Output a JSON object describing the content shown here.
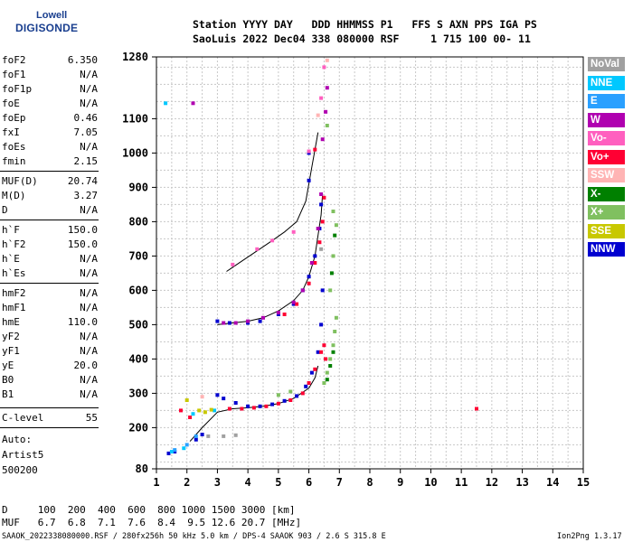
{
  "logo": {
    "line1": "Lowell",
    "line2": "DIGISONDE"
  },
  "header": {
    "line1": "Station YYYY DAY   DDD HHMMSS P1   FFS S AXN PPS IGA PS",
    "line2": "SaoLuis 2022 Dec04 338 080000 RSF     1 715 100 00- 11"
  },
  "params": [
    {
      "name": "foF2",
      "value": "6.350"
    },
    {
      "name": "foF1",
      "value": "N/A"
    },
    {
      "name": "foF1p",
      "value": "N/A"
    },
    {
      "name": "foE",
      "value": "N/A"
    },
    {
      "name": "foEp",
      "value": "0.46"
    },
    {
      "name": "fxI",
      "value": "7.05"
    },
    {
      "name": "foEs",
      "value": "N/A"
    },
    {
      "name": "fmin",
      "value": "2.15"
    },
    {
      "name": "MUF(D)",
      "value": "20.74"
    },
    {
      "name": "M(D)",
      "value": "3.27"
    },
    {
      "name": "D",
      "value": "N/A"
    },
    {
      "name": "h`F",
      "value": "150.0"
    },
    {
      "name": "h`F2",
      "value": "150.0"
    },
    {
      "name": "h`E",
      "value": "N/A"
    },
    {
      "name": "h`Es",
      "value": "N/A"
    },
    {
      "name": "hmF2",
      "value": "N/A"
    },
    {
      "name": "hmF1",
      "value": "N/A"
    },
    {
      "name": "hmE",
      "value": "110.0"
    },
    {
      "name": "yF2",
      "value": "N/A"
    },
    {
      "name": "yF1",
      "value": "N/A"
    },
    {
      "name": "yE",
      "value": "20.0"
    },
    {
      "name": "B0",
      "value": "N/A"
    },
    {
      "name": "B1",
      "value": "N/A"
    },
    {
      "name": "C-level",
      "value": "55"
    }
  ],
  "auto": {
    "label": "Auto:",
    "artist": "Artist5",
    "code": "500200"
  },
  "legend": [
    {
      "label": "NoVal",
      "color": "#a0a0a0"
    },
    {
      "label": "NNE",
      "color": "#00c8ff"
    },
    {
      "label": "E",
      "color": "#2aa0ff"
    },
    {
      "label": "W",
      "color": "#b000b0"
    },
    {
      "label": "Vo-",
      "color": "#ff5fbf"
    },
    {
      "label": "Vo+",
      "color": "#ff0033"
    },
    {
      "label": "SSW",
      "color": "#ffb4b4"
    },
    {
      "label": "X-",
      "color": "#008000"
    },
    {
      "label": "X+",
      "color": "#80c060"
    },
    {
      "label": "SSE",
      "color": "#c8c800"
    },
    {
      "label": "NNW",
      "color": "#0000d0"
    }
  ],
  "footer": {
    "d_row": "D     100  200  400  600  800 1000 1500 3000 [km]",
    "muf_row": "MUF   6.7  6.8  7.1  7.6  8.4  9.5 12.6 20.7 [MHz]",
    "file_row": "SAAOK_2022338080000.RSF / 280fx256h 50 kHz 5.0 km / DPS-4 SAAOK 903 / 2.6 S 315.8 E",
    "version": "Ion2Png 1.3.17"
  },
  "chart_data": {
    "type": "scatter",
    "xlim": [
      1,
      15
    ],
    "ylim": [
      80,
      1280
    ],
    "x_ticks": [
      1,
      2,
      3,
      4,
      5,
      6,
      7,
      8,
      9,
      10,
      11,
      12,
      13,
      14,
      15
    ],
    "y_ticks": [
      80,
      200,
      300,
      400,
      500,
      600,
      700,
      800,
      900,
      1000,
      1100,
      1280
    ],
    "grid": true,
    "legend_position": "right",
    "series": [
      {
        "name": "NNW",
        "color": "#0000d0",
        "points": [
          [
            3.0,
            295
          ],
          [
            3.2,
            285
          ],
          [
            3.6,
            272
          ],
          [
            4.0,
            262
          ],
          [
            4.4,
            262
          ],
          [
            4.8,
            268
          ],
          [
            5.2,
            278
          ],
          [
            5.6,
            292
          ],
          [
            5.9,
            320
          ],
          [
            6.1,
            360
          ],
          [
            6.3,
            420
          ],
          [
            6.4,
            500
          ],
          [
            6.45,
            600
          ],
          [
            5.0,
            530
          ],
          [
            5.5,
            560
          ],
          [
            5.8,
            600
          ],
          [
            6.0,
            640
          ],
          [
            6.2,
            700
          ],
          [
            6.35,
            780
          ],
          [
            6.4,
            850
          ],
          [
            6.0,
            920
          ],
          [
            6.0,
            1000
          ],
          [
            1.4,
            125
          ],
          [
            1.6,
            130
          ],
          [
            2.3,
            165
          ],
          [
            2.5,
            180
          ],
          [
            3.0,
            510
          ],
          [
            3.4,
            505
          ],
          [
            4.0,
            505
          ],
          [
            4.4,
            510
          ]
        ]
      },
      {
        "name": "Vo+",
        "color": "#ff0033",
        "points": [
          [
            3.4,
            255
          ],
          [
            3.8,
            255
          ],
          [
            4.2,
            258
          ],
          [
            4.6,
            262
          ],
          [
            5.0,
            270
          ],
          [
            5.4,
            280
          ],
          [
            5.8,
            300
          ],
          [
            6.0,
            330
          ],
          [
            6.2,
            370
          ],
          [
            6.4,
            420
          ],
          [
            6.5,
            440
          ],
          [
            6.55,
            400
          ],
          [
            5.2,
            530
          ],
          [
            5.6,
            560
          ],
          [
            6.0,
            620
          ],
          [
            6.2,
            680
          ],
          [
            6.35,
            740
          ],
          [
            6.45,
            800
          ],
          [
            6.5,
            870
          ],
          [
            6.2,
            1010
          ],
          [
            11.5,
            255
          ],
          [
            2.1,
            230
          ],
          [
            1.8,
            250
          ]
        ]
      },
      {
        "name": "W",
        "color": "#b000b0",
        "points": [
          [
            3.2,
            505
          ],
          [
            3.6,
            505
          ],
          [
            4.0,
            510
          ],
          [
            4.5,
            520
          ],
          [
            5.0,
            535
          ],
          [
            5.5,
            565
          ],
          [
            5.8,
            600
          ],
          [
            6.1,
            680
          ],
          [
            6.3,
            780
          ],
          [
            6.4,
            880
          ],
          [
            6.45,
            1040
          ],
          [
            6.55,
            1120
          ],
          [
            6.6,
            1190
          ],
          [
            2.2,
            1145
          ]
        ]
      },
      {
        "name": "X+",
        "color": "#80c060",
        "points": [
          [
            6.5,
            330
          ],
          [
            6.6,
            360
          ],
          [
            6.7,
            400
          ],
          [
            6.8,
            440
          ],
          [
            6.85,
            480
          ],
          [
            6.9,
            520
          ],
          [
            6.7,
            600
          ],
          [
            6.8,
            700
          ],
          [
            6.9,
            790
          ],
          [
            6.8,
            830
          ],
          [
            6.6,
            1080
          ],
          [
            5.0,
            295
          ],
          [
            5.4,
            305
          ]
        ]
      },
      {
        "name": "X-",
        "color": "#008000",
        "points": [
          [
            6.6,
            340
          ],
          [
            6.7,
            380
          ],
          [
            6.8,
            420
          ],
          [
            6.75,
            650
          ],
          [
            6.85,
            760
          ]
        ]
      },
      {
        "name": "NNE",
        "color": "#00c8ff",
        "points": [
          [
            1.3,
            1145
          ],
          [
            1.5,
            130
          ],
          [
            1.9,
            140
          ],
          [
            2.2,
            240
          ],
          [
            2.9,
            250
          ]
        ]
      },
      {
        "name": "E",
        "color": "#2aa0ff",
        "points": [
          [
            1.6,
            135
          ],
          [
            2.0,
            150
          ],
          [
            2.3,
            175
          ]
        ]
      },
      {
        "name": "Vo-",
        "color": "#ff5fbf",
        "points": [
          [
            6.0,
            1005
          ],
          [
            5.5,
            770
          ],
          [
            4.8,
            745
          ],
          [
            4.3,
            720
          ],
          [
            3.5,
            675
          ],
          [
            6.4,
            1160
          ],
          [
            6.5,
            1250
          ]
        ]
      },
      {
        "name": "SSE",
        "color": "#c8c800",
        "points": [
          [
            2.4,
            250
          ],
          [
            2.6,
            245
          ],
          [
            2.8,
            252
          ],
          [
            2.0,
            280
          ]
        ]
      },
      {
        "name": "SSW",
        "color": "#ffb4b4",
        "points": [
          [
            6.6,
            1270
          ],
          [
            2.5,
            290
          ],
          [
            6.3,
            1110
          ]
        ]
      },
      {
        "name": "NoVal",
        "color": "#a0a0a0",
        "points": [
          [
            3.2,
            175
          ],
          [
            3.6,
            178
          ],
          [
            2.7,
            175
          ],
          [
            6.4,
            720
          ]
        ]
      }
    ],
    "traces": [
      {
        "name": "lower",
        "points": [
          [
            2.1,
            160
          ],
          [
            2.5,
            200
          ],
          [
            3.0,
            245
          ],
          [
            3.5,
            255
          ],
          [
            4.0,
            258
          ],
          [
            4.5,
            262
          ],
          [
            5.0,
            270
          ],
          [
            5.5,
            285
          ],
          [
            6.0,
            315
          ],
          [
            6.2,
            345
          ],
          [
            6.3,
            380
          ]
        ]
      },
      {
        "name": "upper",
        "points": [
          [
            3.0,
            500
          ],
          [
            3.5,
            505
          ],
          [
            4.0,
            510
          ],
          [
            4.5,
            520
          ],
          [
            5.0,
            540
          ],
          [
            5.5,
            570
          ],
          [
            5.8,
            600
          ],
          [
            6.0,
            640
          ],
          [
            6.2,
            700
          ],
          [
            6.3,
            760
          ],
          [
            6.4,
            820
          ],
          [
            6.45,
            880
          ]
        ]
      },
      {
        "name": "third",
        "points": [
          [
            3.3,
            655
          ],
          [
            3.8,
            685
          ],
          [
            4.3,
            715
          ],
          [
            4.8,
            745
          ],
          [
            5.2,
            770
          ],
          [
            5.6,
            800
          ],
          [
            5.9,
            860
          ],
          [
            6.1,
            960
          ],
          [
            6.3,
            1060
          ]
        ]
      }
    ]
  }
}
